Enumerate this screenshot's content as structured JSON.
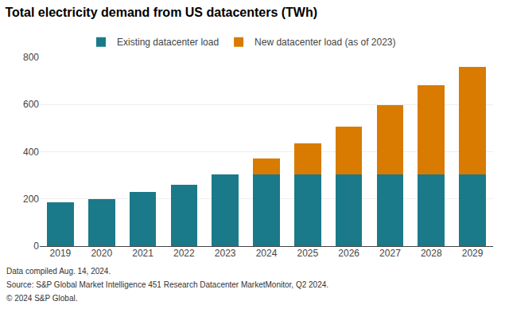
{
  "chart_data": {
    "type": "bar",
    "title": "Total electricity demand from US datacenters (TWh)",
    "categories": [
      "2019",
      "2020",
      "2021",
      "2022",
      "2023",
      "2024",
      "2025",
      "2026",
      "2027",
      "2028",
      "2029"
    ],
    "series": [
      {
        "name": "Existing datacenter load",
        "color": "#1a7a8a",
        "values": [
          186,
          200,
          228,
          260,
          305,
          305,
          305,
          305,
          305,
          305,
          305
        ]
      },
      {
        "name": "New datacenter load (as of 2023)",
        "color": "#d97b00",
        "values": [
          0,
          0,
          0,
          0,
          0,
          68,
          132,
          200,
          293,
          378,
          453
        ]
      }
    ],
    "stacked": true,
    "ylim": [
      0,
      800
    ],
    "yticks": [
      0,
      200,
      400,
      600,
      800
    ],
    "grid": true,
    "legend": "top",
    "annotations": [
      "Data compiled Aug. 14, 2024.",
      "Source: S&P Global Market Intelligence 451 Research Datacenter MarketMonitor, Q2 2024.",
      "© 2024 S&P Global."
    ]
  }
}
